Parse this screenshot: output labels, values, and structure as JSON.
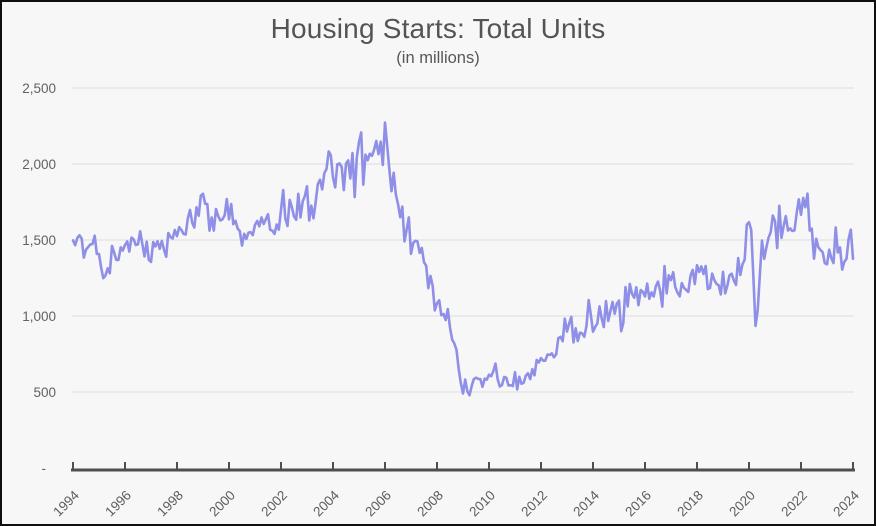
{
  "page": {
    "background_color": "#f7f7f7",
    "frame_border_color": "#0f0f0f"
  },
  "header": {
    "title": "Housing Starts: Total Units",
    "subtitle": "(in millions)"
  },
  "chart_data": {
    "type": "line",
    "title": "Housing Starts: Total Units",
    "subtitle": "(in millions)",
    "legend": "none",
    "grid": "horizontal",
    "line_color": "#8f8fe8",
    "grid_color": "#e3e3e3",
    "axis_color": "#4f4f4f",
    "x_axis": {
      "tick_labels": [
        "1994",
        "1996",
        "1998",
        "2000",
        "2002",
        "2004",
        "2006",
        "2008",
        "2010",
        "2012",
        "2014",
        "2016",
        "2018",
        "2020",
        "2022",
        "2024"
      ],
      "range_years": [
        1994,
        2024.0833
      ],
      "label_rotation_deg": -45
    },
    "y_axis": {
      "range": [
        0,
        2500
      ],
      "ticks": [
        {
          "value": 0,
          "label": "-"
        },
        {
          "value": 500,
          "label": "500"
        },
        {
          "value": 1000,
          "label": "1,000"
        },
        {
          "value": 1500,
          "label": "1,500"
        },
        {
          "value": 2000,
          "label": "2,000"
        },
        {
          "value": 2500,
          "label": "2,500"
        }
      ]
    },
    "series": [
      {
        "name": "Housing Starts: Total Units",
        "start_year": 1994,
        "frequency": "monthly",
        "values": [
          1498,
          1466,
          1513,
          1531,
          1509,
          1384,
          1437,
          1454,
          1471,
          1473,
          1528,
          1409,
          1407,
          1316,
          1249,
          1267,
          1314,
          1281,
          1461,
          1416,
          1369,
          1369,
          1452,
          1431,
          1467,
          1491,
          1424,
          1516,
          1504,
          1467,
          1472,
          1557,
          1475,
          1392,
          1489,
          1370,
          1355,
          1486,
          1457,
          1492,
          1442,
          1494,
          1437,
          1390,
          1546,
          1520,
          1510,
          1566,
          1525,
          1584,
          1567,
          1540,
          1536,
          1641,
          1698,
          1614,
          1582,
          1715,
          1660,
          1792,
          1804,
          1738,
          1737,
          1561,
          1649,
          1562,
          1704,
          1657,
          1628,
          1636,
          1663,
          1769,
          1636,
          1737,
          1604,
          1626,
          1575,
          1559,
          1463,
          1541,
          1507,
          1549,
          1551,
          1532,
          1600,
          1625,
          1590,
          1649,
          1605,
          1636,
          1670,
          1567,
          1562,
          1540,
          1602,
          1568,
          1698,
          1829,
          1642,
          1592,
          1764,
          1717,
          1655,
          1633,
          1804,
          1648,
          1753,
          1788,
          1853,
          1629,
          1726,
          1643,
          1751,
          1867,
          1897,
          1833,
          1939,
          1967,
          2083,
          2057,
          1911,
          1846,
          1998,
          2003,
          1981,
          1828,
          2002,
          2024,
          1905,
          2072,
          1782,
          2042,
          2144,
          2207,
          1864,
          2061,
          2025,
          2068,
          2054,
          2095,
          2151,
          2065,
          2147,
          1994,
          2273,
          2119,
          1969,
          1821,
          1942,
          1802,
          1737,
          1650,
          1720,
          1491,
          1570,
          1649,
          1409,
          1480,
          1495,
          1490,
          1415,
          1448,
          1354,
          1330,
          1183,
          1264,
          1197,
          1037,
          1084,
          1103,
          1005,
          1013,
          973,
          1046,
          923,
          844,
          820,
          777,
          652,
          560,
          490,
          582,
          505,
          478,
          540,
          585,
          594,
          586,
          585,
          534,
          588,
          581,
          614,
          604,
          636,
          687,
          583,
          536,
          546,
          599,
          594,
          543,
          545,
          539,
          630,
          517,
          600,
          554,
          561,
          608,
          623,
          585,
          650,
          610,
          711,
          694,
          723,
          706,
          706,
          747,
          744,
          754,
          728,
          749,
          854,
          863,
          834,
          982,
          898,
          952,
          994,
          826,
          919,
          835,
          891,
          885,
          863,
          936,
          1105,
          1010,
          897,
          928,
          950,
          1063,
          984,
          927,
          1098,
          968,
          1028,
          1092,
          1015,
          1081,
          1101,
          900,
          954,
          1190,
          1063,
          1211,
          1147,
          1120,
          1189,
          1071,
          1171,
          1160,
          1128,
          1213,
          1113,
          1155,
          1128,
          1195,
          1226,
          1164,
          1062,
          1328,
          1149,
          1268,
          1236,
          1288,
          1189,
          1154,
          1129,
          1217,
          1185,
          1172,
          1158,
          1265,
          1303,
          1210,
          1334,
          1290,
          1327,
          1276,
          1329,
          1177,
          1184,
          1279,
          1237,
          1211,
          1202,
          1142,
          1291,
          1149,
          1199,
          1267,
          1278,
          1235,
          1204,
          1381,
          1270,
          1340,
          1371,
          1601,
          1617,
          1567,
          1269,
          934,
          1038,
          1265,
          1497,
          1376,
          1448,
          1514,
          1551,
          1661,
          1625,
          1447,
          1725,
          1514,
          1594,
          1657,
          1562,
          1576,
          1559,
          1563,
          1678,
          1768,
          1666,
          1777,
          1716,
          1805,
          1562,
          1575,
          1377,
          1508,
          1453,
          1434,
          1419,
          1348,
          1340,
          1436,
          1380,
          1348,
          1583,
          1418,
          1451,
          1305,
          1356,
          1376,
          1510,
          1568,
          1376
        ]
      }
    ]
  }
}
